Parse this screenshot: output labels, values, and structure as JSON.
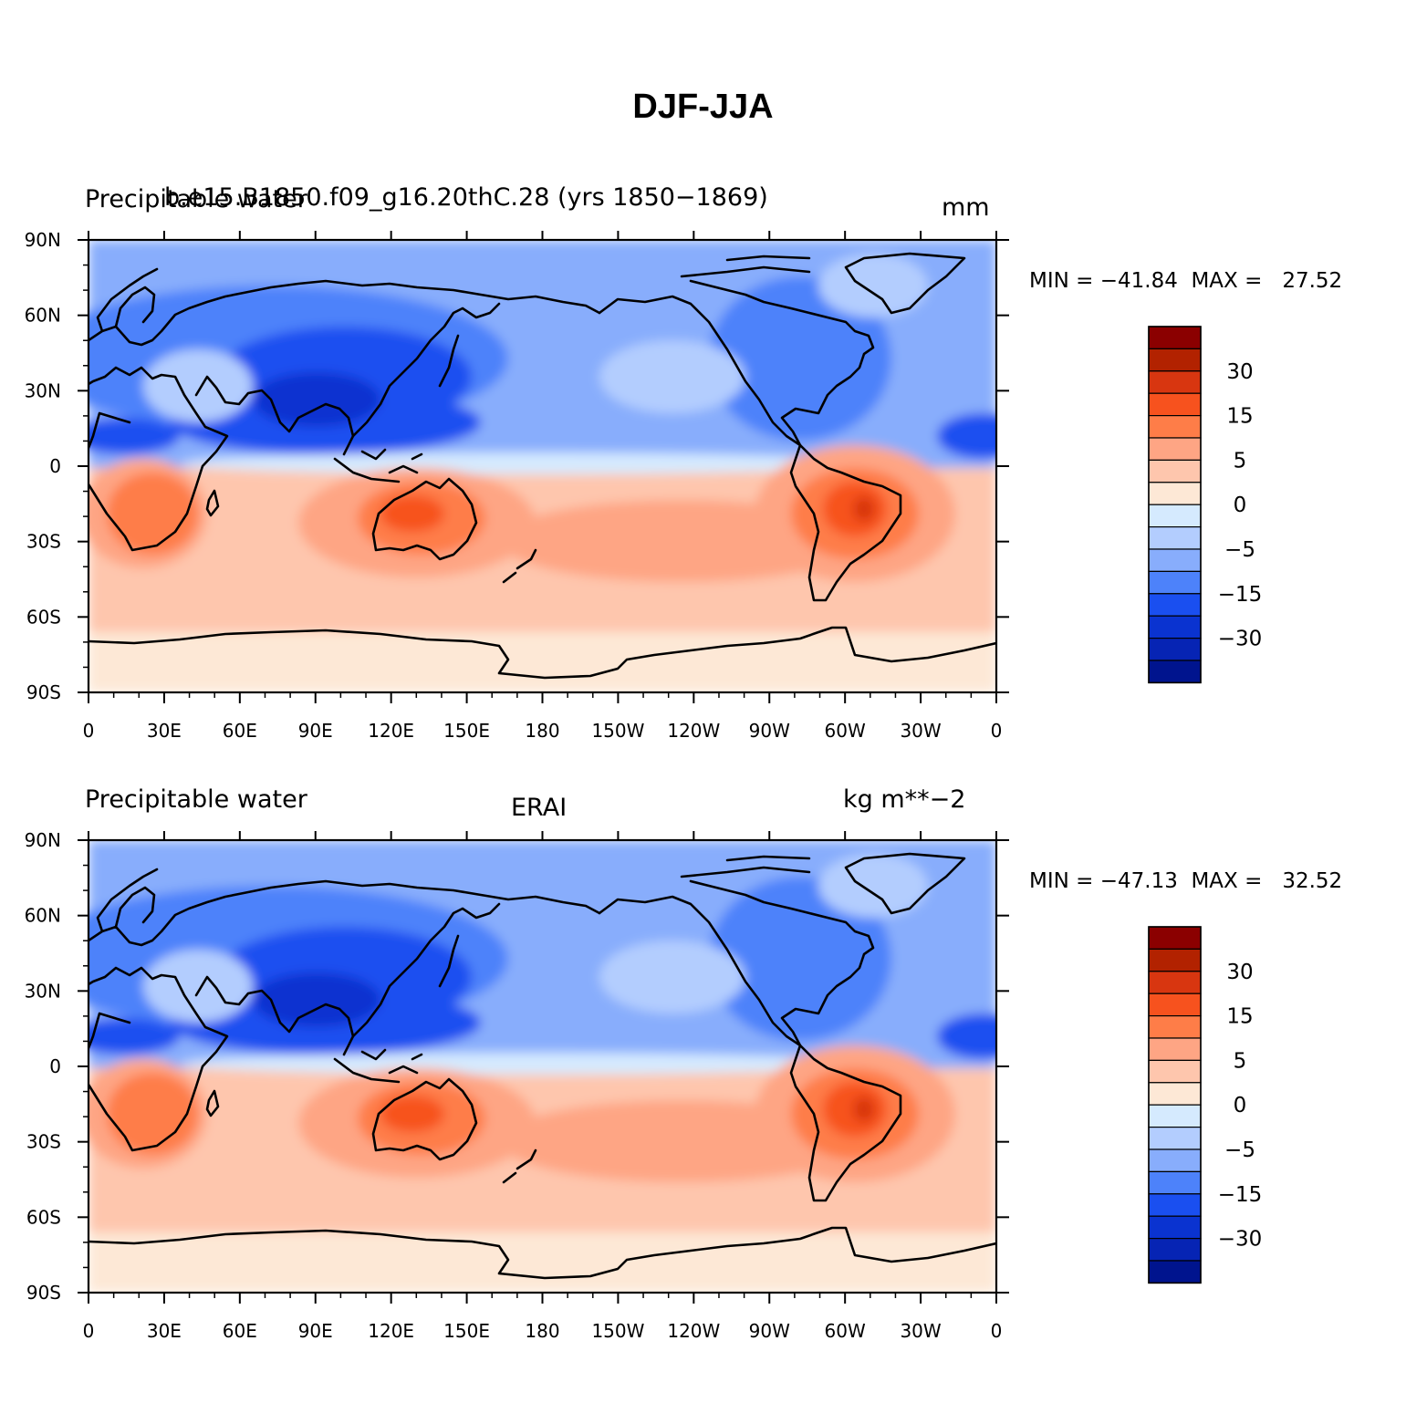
{
  "title": "DJF-JJA",
  "color_scale": {
    "levels": [
      "",
      "30",
      "",
      "15",
      "",
      "5",
      "",
      "0",
      "",
      "−5",
      "",
      "−15",
      "",
      "−30",
      "",
      ""
    ],
    "colors": [
      "#8b0000",
      "#b22200",
      "#d83610",
      "#f7521e",
      "#fe7d48",
      "#fea584",
      "#fec6ad",
      "#fde8d6",
      "#d5eafe",
      "#b3cdfe",
      "#88adfc",
      "#4d82fa",
      "#1a4ff0",
      "#0a33d0",
      "#0624b4",
      "#00148e"
    ]
  },
  "panels": [
    {
      "left_label": "Precipitable water",
      "center_label": "b.e15.B1850.f09_g16.20thC.28 (yrs 1850−1869)",
      "right_label": "mm",
      "min_max": "MIN = −41.84  MAX =   27.52",
      "min": -41.84,
      "max": 27.52
    },
    {
      "left_label": "Precipitable water",
      "center_label": "ERAI",
      "right_label": "kg m**−2",
      "min_max": "MIN = −47.13  MAX =   32.52",
      "min": -47.13,
      "max": 32.52
    }
  ],
  "axes": {
    "x_ticks": [
      "0",
      "30E",
      "60E",
      "90E",
      "120E",
      "150E",
      "180",
      "150W",
      "120W",
      "90W",
      "60W",
      "30W",
      "0"
    ],
    "y_ticks": [
      "90N",
      "60N",
      "30N",
      "0",
      "30S",
      "60S",
      "90S"
    ]
  },
  "map_icon": "world-coastlines-icon"
}
